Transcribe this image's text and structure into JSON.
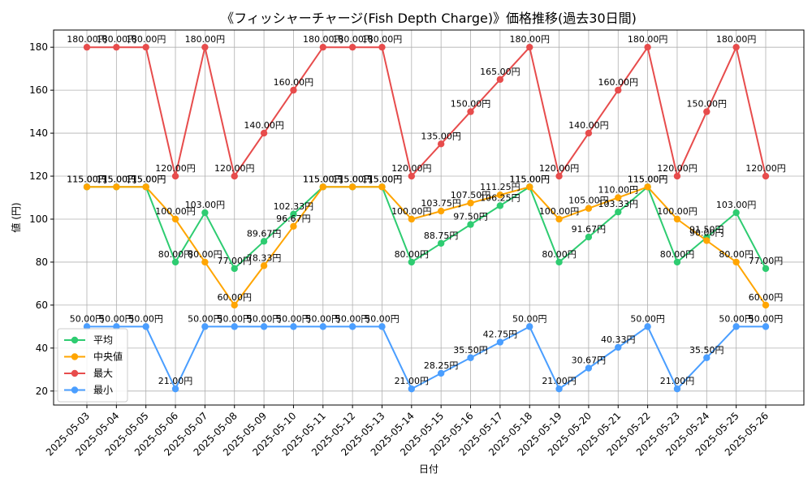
{
  "chart_data": {
    "type": "line",
    "title": "《フィッシャーチャージ(Fish Depth Charge)》価格推移(過去30日間)",
    "xlabel": "日付",
    "ylabel": "値 (円)",
    "ylim": [
      13.5,
      188
    ],
    "yticks": [
      20,
      40,
      60,
      80,
      100,
      120,
      140,
      160,
      180
    ],
    "grid": true,
    "legend_position": "lower-left",
    "value_suffix": "円",
    "categories": [
      "2025-05-03",
      "2025-05-04",
      "2025-05-05",
      "2025-05-06",
      "2025-05-07",
      "2025-05-08",
      "2025-05-09",
      "2025-05-10",
      "2025-05-11",
      "2025-05-12",
      "2025-05-13",
      "2025-05-14",
      "2025-05-15",
      "2025-05-16",
      "2025-05-17",
      "2025-05-18",
      "2025-05-19",
      "2025-05-20",
      "2025-05-21",
      "2025-05-22",
      "2025-05-23",
      "2025-05-24",
      "2025-05-25",
      "2025-05-26"
    ],
    "series": [
      {
        "name": "平均",
        "color": "#2ecc71",
        "values": [
          115,
          115,
          115,
          80,
          103,
          77,
          89.67,
          102.33,
          115,
          115,
          115,
          80,
          88.75,
          97.5,
          106.25,
          115,
          80,
          91.67,
          103.33,
          115,
          80,
          91.5,
          103,
          77
        ]
      },
      {
        "name": "中央値",
        "color": "#ffa500",
        "values": [
          115,
          115,
          115,
          100,
          80,
          60,
          78.33,
          96.67,
          115,
          115,
          115,
          100,
          103.75,
          107.5,
          111.25,
          115,
          100,
          105,
          110,
          115,
          100,
          90,
          80,
          60
        ]
      },
      {
        "name": "最大",
        "color": "#e74c4c",
        "values": [
          180,
          180,
          180,
          120,
          180,
          120,
          140,
          160,
          180,
          180,
          180,
          120,
          135,
          150,
          165,
          180,
          120,
          140,
          160,
          180,
          120,
          150,
          180,
          120
        ]
      },
      {
        "name": "最小",
        "color": "#4a9eff",
        "values": [
          50,
          50,
          50,
          21,
          50,
          50,
          50,
          50,
          50,
          50,
          50,
          21,
          28.25,
          35.5,
          42.75,
          50,
          21,
          30.67,
          40.33,
          50,
          21,
          35.5,
          50,
          50
        ]
      }
    ]
  }
}
